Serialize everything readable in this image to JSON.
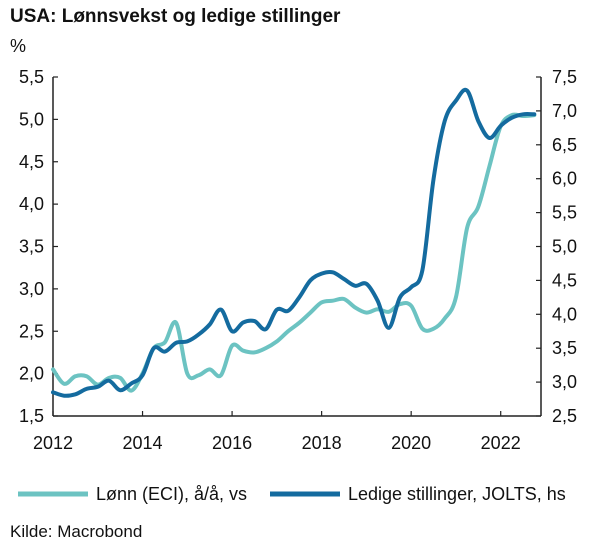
{
  "chart_data": {
    "type": "line",
    "title": "USA: Lønnsvekst og ledige stillinger",
    "unit_label": "%",
    "source": "Kilde: Macrobond",
    "x_ticks": [
      "2012",
      "2014",
      "2016",
      "2018",
      "2020",
      "2022"
    ],
    "xlim": [
      2012,
      2022.9
    ],
    "y_left": {
      "lim": [
        1.5,
        5.5
      ],
      "ticks": [
        "1,5",
        "2,0",
        "2,5",
        "3,0",
        "3,5",
        "4,0",
        "4,5",
        "5,0",
        "5,5"
      ]
    },
    "y_right": {
      "lim": [
        2.5,
        7.5
      ],
      "ticks": [
        "2,5",
        "3,0",
        "3,5",
        "4,0",
        "4,5",
        "5,0",
        "5,5",
        "6,0",
        "6,5",
        "7,0",
        "7,5"
      ]
    },
    "series": [
      {
        "name": "Lønn (ECI), å/å, vs",
        "axis": "left",
        "color": "#6cc3c2",
        "x": [
          2012.0,
          2012.25,
          2012.5,
          2012.75,
          2013.0,
          2013.25,
          2013.5,
          2013.75,
          2014.0,
          2014.25,
          2014.5,
          2014.75,
          2015.0,
          2015.25,
          2015.5,
          2015.75,
          2016.0,
          2016.25,
          2016.5,
          2016.75,
          2017.0,
          2017.25,
          2017.5,
          2017.75,
          2018.0,
          2018.25,
          2018.5,
          2018.75,
          2019.0,
          2019.25,
          2019.5,
          2019.75,
          2020.0,
          2020.25,
          2020.5,
          2020.75,
          2021.0,
          2021.25,
          2021.5,
          2021.75,
          2022.0,
          2022.25,
          2022.5,
          2022.75
        ],
        "values": [
          2.05,
          1.88,
          1.97,
          1.97,
          1.87,
          1.95,
          1.95,
          1.8,
          2.0,
          2.3,
          2.37,
          2.6,
          2.0,
          1.98,
          2.05,
          1.98,
          2.33,
          2.27,
          2.25,
          2.3,
          2.38,
          2.5,
          2.6,
          2.72,
          2.84,
          2.86,
          2.88,
          2.78,
          2.72,
          2.76,
          2.73,
          2.82,
          2.8,
          2.53,
          2.53,
          2.65,
          2.9,
          3.72,
          3.97,
          4.45,
          4.92,
          5.05,
          5.04,
          5.05
        ]
      },
      {
        "name": "Ledige stillinger, JOLTS, hs",
        "axis": "right",
        "color": "#146b9f",
        "x": [
          2012.0,
          2012.25,
          2012.5,
          2012.75,
          2013.0,
          2013.25,
          2013.5,
          2013.75,
          2014.0,
          2014.25,
          2014.5,
          2014.75,
          2015.0,
          2015.25,
          2015.5,
          2015.75,
          2016.0,
          2016.25,
          2016.5,
          2016.75,
          2017.0,
          2017.25,
          2017.5,
          2017.75,
          2018.0,
          2018.25,
          2018.5,
          2018.75,
          2019.0,
          2019.25,
          2019.5,
          2019.75,
          2020.0,
          2020.25,
          2020.5,
          2020.75,
          2021.0,
          2021.25,
          2021.5,
          2021.75,
          2022.0,
          2022.25,
          2022.5,
          2022.75
        ],
        "values": [
          2.85,
          2.8,
          2.82,
          2.9,
          2.93,
          3.02,
          2.88,
          2.98,
          3.1,
          3.5,
          3.45,
          3.58,
          3.6,
          3.7,
          3.85,
          4.07,
          3.75,
          3.88,
          3.9,
          3.78,
          4.07,
          4.05,
          4.25,
          4.5,
          4.6,
          4.62,
          4.52,
          4.42,
          4.45,
          4.2,
          3.8,
          4.25,
          4.4,
          4.65,
          6.0,
          6.85,
          7.15,
          7.3,
          6.85,
          6.6,
          6.78,
          6.9,
          6.95,
          6.95
        ]
      }
    ],
    "grid": false,
    "legend": "bottom"
  }
}
